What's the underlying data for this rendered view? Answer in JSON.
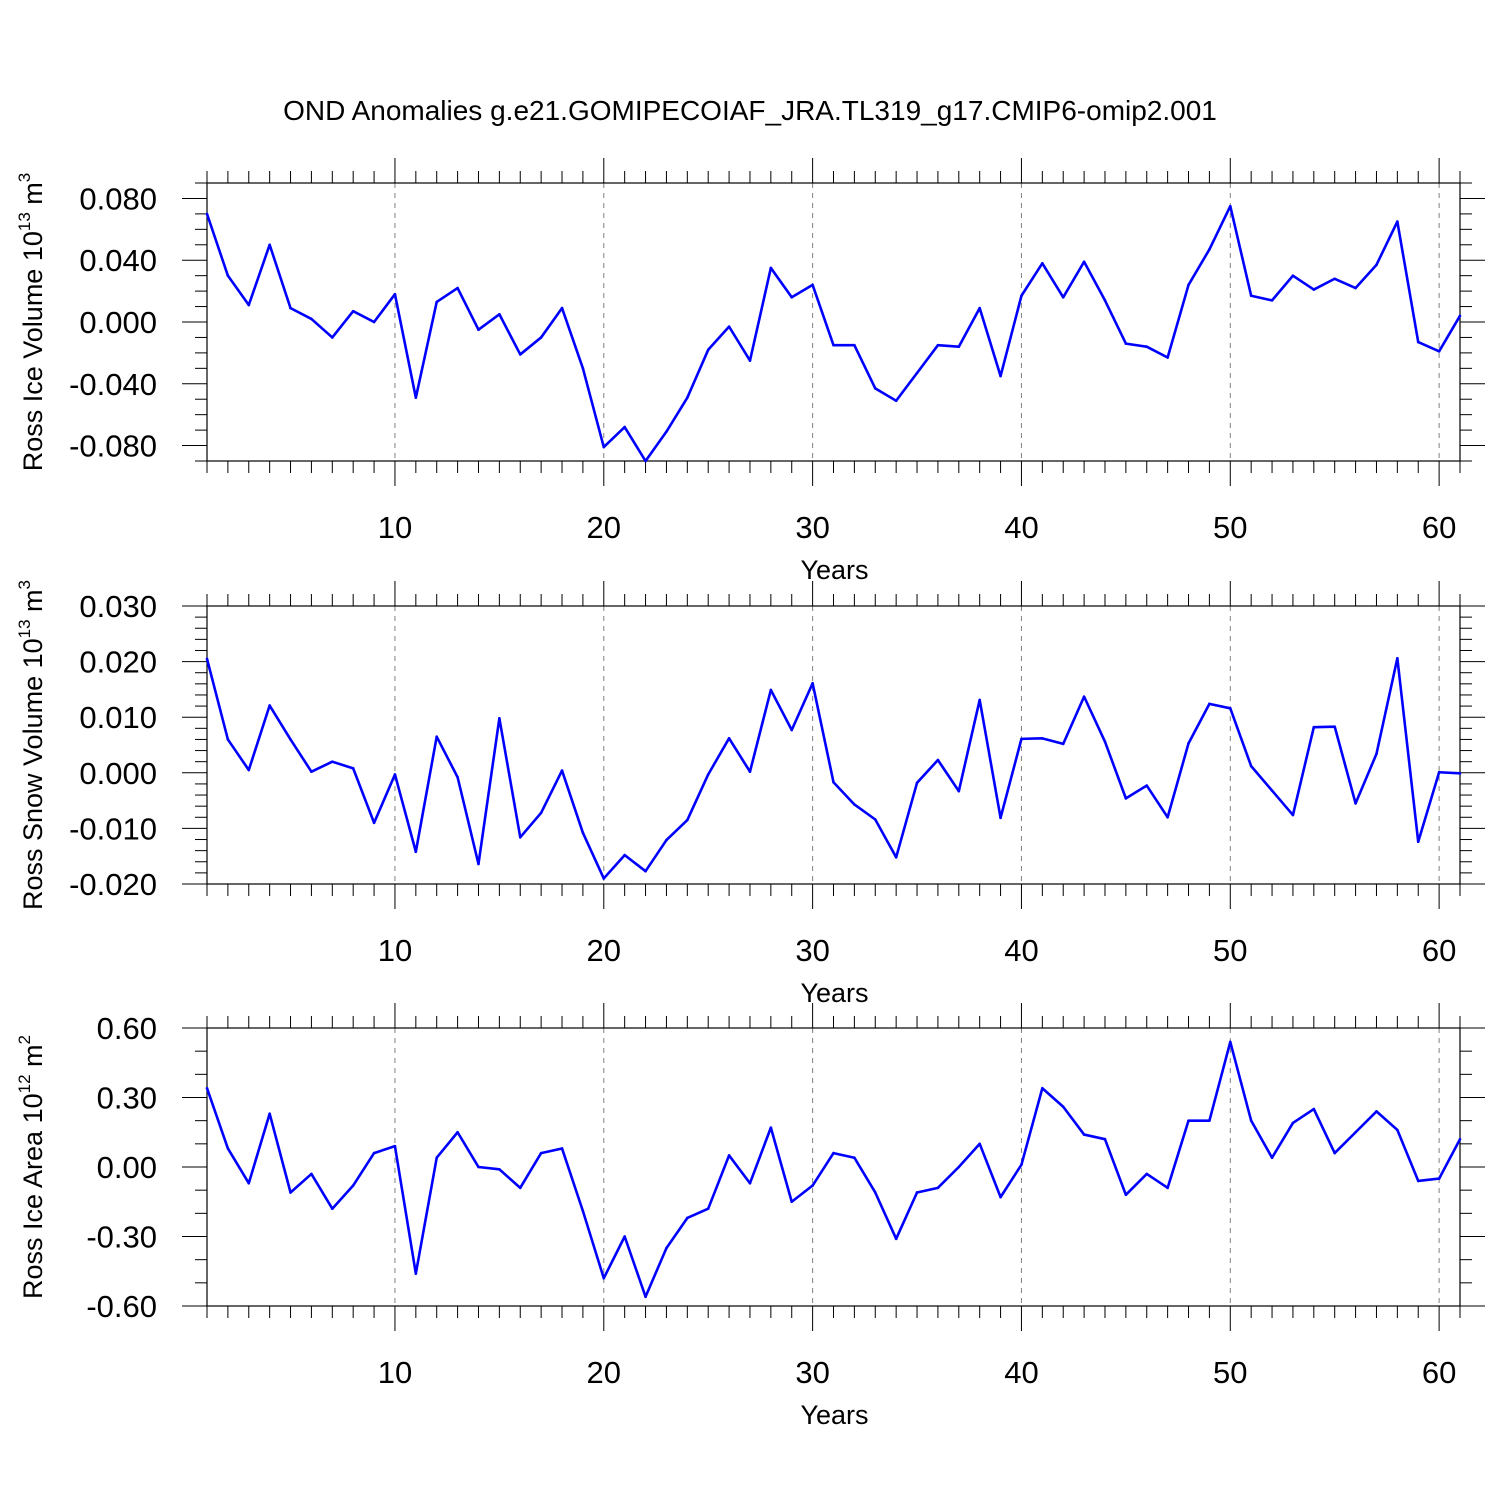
{
  "title": "OND Anomalies g.e21.GOMIPECOIAF_JRA.TL319_g17.CMIP6-omip2.001",
  "colors": {
    "series": "#0000ff",
    "axis": "#000000",
    "grid": "#808080"
  },
  "chart_data": [
    {
      "type": "line",
      "ylabel": "Ross Ice Volume 10",
      "ylabel_exp": "13",
      "ylabel_unit": " m",
      "ylabel_unit_exp": "3",
      "xlabel": "Years",
      "xlim": [
        1,
        61
      ],
      "ylim": [
        -0.09,
        0.09
      ],
      "grid_x": "dashed vertical lines at labeled ticks",
      "x_ticks": [
        10,
        20,
        30,
        40,
        50,
        60
      ],
      "x_tick_labels": [
        "10",
        "20",
        "30",
        "40",
        "50",
        "60"
      ],
      "y_ticks": [
        -0.08,
        -0.04,
        0.0,
        0.04,
        0.08
      ],
      "y_tick_labels": [
        "-0.080",
        "-0.040",
        "0.000",
        "0.040",
        "0.080"
      ],
      "y_minor_step": 0.01,
      "values": [
        0.07,
        0.03,
        0.011,
        0.05,
        0.009,
        0.002,
        -0.01,
        0.007,
        0.0,
        0.018,
        -0.049,
        0.013,
        0.022,
        -0.005,
        0.005,
        -0.021,
        -0.01,
        0.009,
        -0.03,
        -0.081,
        -0.068,
        -0.09,
        -0.071,
        -0.049,
        -0.018,
        -0.003,
        -0.025,
        0.035,
        0.016,
        0.024,
        -0.015,
        -0.015,
        -0.043,
        -0.051,
        -0.033,
        -0.015,
        -0.016,
        0.009,
        -0.035,
        0.017,
        0.038,
        0.016,
        0.039,
        0.014,
        -0.014,
        -0.016,
        -0.023,
        0.024,
        0.047,
        0.075,
        0.017,
        0.014,
        0.03,
        0.021,
        0.028,
        0.022,
        0.037,
        0.065,
        -0.013,
        -0.019,
        0.004
      ]
    },
    {
      "type": "line",
      "ylabel": "Ross Snow Volume 10",
      "ylabel_exp": "13",
      "ylabel_unit": " m",
      "ylabel_unit_exp": "3",
      "xlabel": "Years",
      "xlim": [
        1,
        61
      ],
      "ylim": [
        -0.02,
        0.03
      ],
      "grid_x": "dashed vertical lines at labeled ticks",
      "x_ticks": [
        10,
        20,
        30,
        40,
        50,
        60
      ],
      "x_tick_labels": [
        "10",
        "20",
        "30",
        "40",
        "50",
        "60"
      ],
      "y_ticks": [
        -0.02,
        -0.01,
        0.0,
        0.01,
        0.02,
        0.03
      ],
      "y_tick_labels": [
        "-0.020",
        "-0.010",
        "0.000",
        "0.010",
        "0.020",
        "0.030"
      ],
      "y_minor_step": 0.002,
      "values": [
        0.0205,
        0.006,
        0.0005,
        0.0121,
        0.006,
        0.0002,
        0.002,
        0.0008,
        -0.009,
        -0.0003,
        -0.0142,
        0.0065,
        -0.0008,
        -0.0164,
        0.0098,
        -0.0116,
        -0.0072,
        0.0004,
        -0.0108,
        -0.019,
        -0.0148,
        -0.0177,
        -0.0121,
        -0.0085,
        -0.0003,
        0.0062,
        0.0002,
        0.0149,
        0.0077,
        0.0161,
        -0.0017,
        -0.0057,
        -0.0084,
        -0.0152,
        -0.0018,
        0.0023,
        -0.0033,
        0.0131,
        -0.0081,
        0.0061,
        0.0062,
        0.0052,
        0.0137,
        0.0056,
        -0.0046,
        -0.0023,
        -0.008,
        0.0053,
        0.0124,
        0.0116,
        0.0012,
        -0.0032,
        -0.0076,
        0.0082,
        0.0083,
        -0.0055,
        0.0034,
        0.0206,
        -0.0124,
        0.0001,
        -0.0001
      ]
    },
    {
      "type": "line",
      "ylabel": "Ross Ice Area 10",
      "ylabel_exp": "12",
      "ylabel_unit": " m",
      "ylabel_unit_exp": "2",
      "xlabel": "Years",
      "xlim": [
        1,
        61
      ],
      "ylim": [
        -0.6,
        0.6
      ],
      "grid_x": "dashed vertical lines at labeled ticks",
      "x_ticks": [
        10,
        20,
        30,
        40,
        50,
        60
      ],
      "x_tick_labels": [
        "10",
        "20",
        "30",
        "40",
        "50",
        "60"
      ],
      "y_ticks": [
        -0.6,
        -0.3,
        0.0,
        0.3,
        0.6
      ],
      "y_tick_labels": [
        "-0.60",
        "-0.30",
        "0.00",
        "0.30",
        "0.60"
      ],
      "y_minor_step": 0.1,
      "values": [
        0.34,
        0.08,
        -0.07,
        0.23,
        -0.11,
        -0.03,
        -0.18,
        -0.08,
        0.06,
        0.09,
        -0.46,
        0.04,
        0.15,
        0.0,
        -0.01,
        -0.09,
        0.06,
        0.08,
        -0.19,
        -0.48,
        -0.3,
        -0.56,
        -0.35,
        -0.22,
        -0.18,
        0.05,
        -0.07,
        0.17,
        -0.15,
        -0.08,
        0.06,
        0.04,
        -0.11,
        -0.31,
        -0.11,
        -0.09,
        0.0,
        0.1,
        -0.13,
        0.01,
        0.34,
        0.26,
        0.14,
        0.12,
        -0.12,
        -0.03,
        -0.09,
        0.2,
        0.2,
        0.54,
        0.2,
        0.04,
        0.19,
        0.25,
        0.06,
        0.15,
        0.24,
        0.16,
        -0.06,
        -0.05,
        0.12
      ]
    }
  ]
}
